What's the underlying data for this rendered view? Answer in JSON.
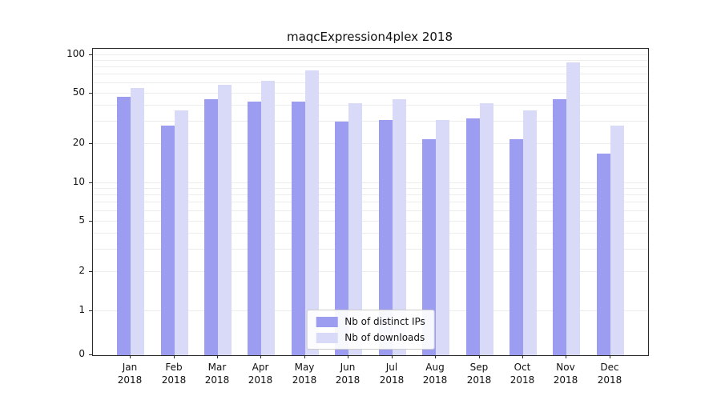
{
  "chart_data": {
    "type": "bar",
    "title": "maqcExpression4plex 2018",
    "categories": [
      "Jan 2018",
      "Feb 2018",
      "Mar 2018",
      "Apr 2018",
      "May 2018",
      "Jun 2018",
      "Jul 2018",
      "Aug 2018",
      "Sep 2018",
      "Oct 2018",
      "Nov 2018",
      "Dec 2018"
    ],
    "series": [
      {
        "name": "Nb of distinct IPs",
        "color": "#9c9cf0",
        "values": [
          47,
          28,
          45,
          43,
          43,
          30,
          31,
          22,
          32,
          22,
          45,
          17
        ]
      },
      {
        "name": "Nb of downloads",
        "color": "#d9d9f8",
        "values": [
          55,
          37,
          58,
          63,
          76,
          42,
          45,
          31,
          42,
          37,
          88,
          28
        ]
      }
    ],
    "xlabel": "",
    "ylabel": "",
    "yscale": "log",
    "ylim": [
      0,
      100
    ],
    "yticks": [
      0,
      1,
      2,
      5,
      10,
      20,
      50,
      100
    ],
    "gridlines": [
      1,
      2,
      3,
      4,
      5,
      6,
      7,
      8,
      9,
      10,
      20,
      30,
      40,
      50,
      60,
      70,
      80,
      90,
      100
    ],
    "grid": "on",
    "legend_position": "lower center"
  }
}
